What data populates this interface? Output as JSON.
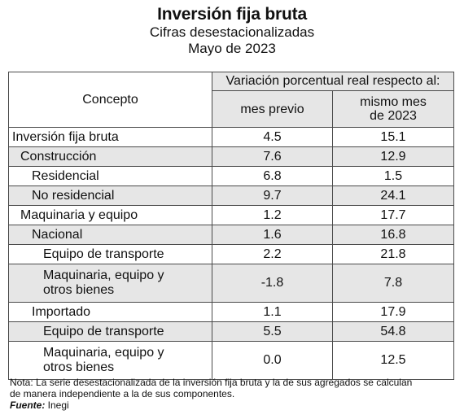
{
  "header": {
    "title": "Inversión fija bruta",
    "subtitle": "Cifras desestacionalizadas",
    "date": "Mayo de 2023"
  },
  "table": {
    "concept_header": "Concepto",
    "span_header": "Variación porcentual real respecto al:",
    "col_prev": "mes previo",
    "col_same_line1": "mismo mes",
    "col_same_line2": "de 2023",
    "rows": [
      {
        "label": "Inversión fija bruta",
        "prev": "4.5",
        "same": "15.1"
      },
      {
        "label": "Construcción",
        "prev": "7.6",
        "same": "12.9"
      },
      {
        "label": "Residencial",
        "prev": "6.8",
        "same": "1.5"
      },
      {
        "label": "No residencial",
        "prev": "9.7",
        "same": "24.1"
      },
      {
        "label": "Maquinaria y equipo",
        "prev": "1.2",
        "same": "17.7"
      },
      {
        "label": "Nacional",
        "prev": "1.6",
        "same": "16.8"
      },
      {
        "label": "Equipo de transporte",
        "prev": "2.2",
        "same": "21.8"
      },
      {
        "label_line1": "Maquinaria, equipo y",
        "label_line2": "otros bienes",
        "prev": "-1.8",
        "same": "7.8"
      },
      {
        "label": "Importado",
        "prev": "1.1",
        "same": "17.9"
      },
      {
        "label": "Equipo de transporte",
        "prev": "5.5",
        "same": "54.8"
      },
      {
        "label_line1": "Maquinaria, equipo y",
        "label_line2": "otros bienes",
        "prev": "0.0",
        "same": "12.5"
      }
    ]
  },
  "footnote": {
    "note_line1": "Nota: La serie desestacionalizada de la inversión fija bruta y la de sus agregados se calculan",
    "note_line2": "de manera independiente a la de sus componentes.",
    "source_label": "Fuente:",
    "source_value": " Inegi"
  }
}
